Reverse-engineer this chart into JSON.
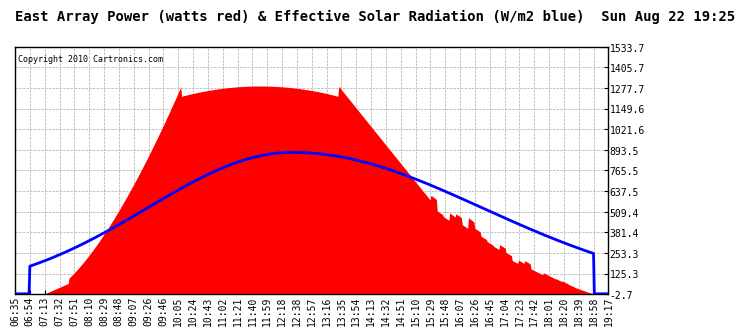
{
  "title": "East Array Power (watts red) & Effective Solar Radiation (W/m2 blue)  Sun Aug 22 19:25",
  "copyright": "Copyright 2010 Cartronics.com",
  "yticks": [
    1533.7,
    1405.7,
    1277.7,
    1149.6,
    1021.6,
    893.5,
    765.5,
    637.5,
    509.4,
    381.4,
    253.3,
    125.3,
    -2.7
  ],
  "ylim": [
    -2.7,
    1533.7
  ],
  "xtick_labels": [
    "06:35",
    "06:54",
    "07:13",
    "07:32",
    "07:51",
    "08:10",
    "08:29",
    "08:48",
    "09:07",
    "09:26",
    "09:46",
    "10:05",
    "10:24",
    "10:43",
    "11:02",
    "11:21",
    "11:40",
    "11:59",
    "12:18",
    "12:38",
    "12:57",
    "13:16",
    "13:35",
    "13:54",
    "14:13",
    "14:32",
    "14:51",
    "15:10",
    "15:29",
    "15:48",
    "16:07",
    "16:26",
    "16:45",
    "17:04",
    "17:23",
    "17:42",
    "18:01",
    "18:20",
    "18:39",
    "18:58",
    "19:17"
  ],
  "background_color": "#ffffff",
  "plot_bg_color": "#ffffff",
  "grid_color": "#aaaaaa",
  "red_fill_color": "#ff0000",
  "blue_line_color": "#0000ff",
  "title_fontsize": 10,
  "tick_fontsize": 7,
  "n_points": 760,
  "ymax": 1533.7,
  "ymin": -2.7,
  "red_peak": 1290,
  "blue_peak": 878
}
